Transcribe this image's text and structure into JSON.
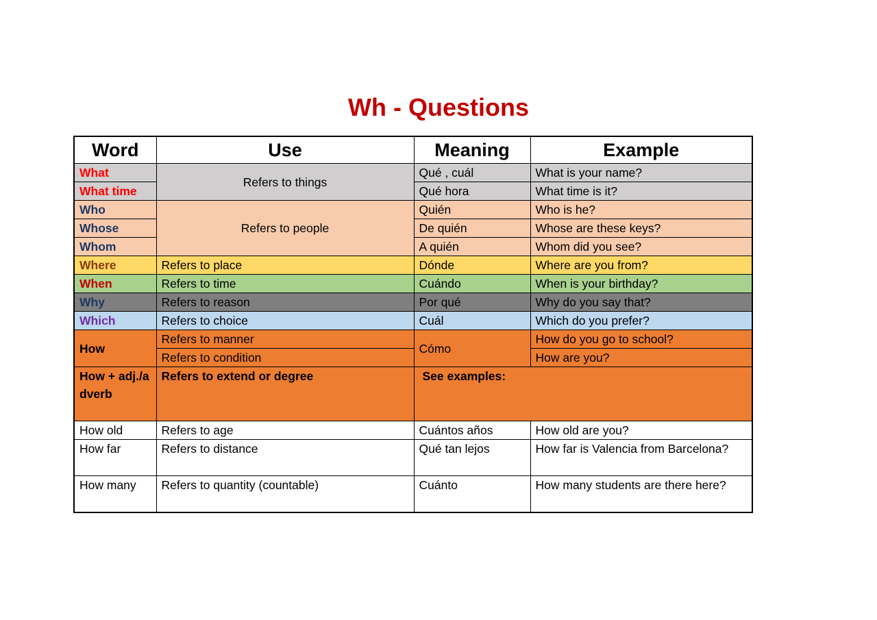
{
  "title": "Wh - Questions",
  "headers": [
    "Word",
    "Use",
    "Meaning",
    "Example"
  ],
  "colors": {
    "gray": "#d0cece",
    "peach": "#f8cbad",
    "yellow": "#ffd966",
    "green": "#a9d18e",
    "darkgray": "#7f7f7f",
    "blue": "#bdd7ee",
    "orange": "#ed7d31"
  },
  "rows": {
    "what": {
      "word": "What",
      "meaning": "Qué , cuál",
      "example": "What is your name?"
    },
    "what_time": {
      "word": "What time",
      "meaning": "Qué hora",
      "example": "What time is it?"
    },
    "things_use": "Refers to things",
    "who": {
      "word": "Who",
      "meaning": "Quién",
      "example": "Who is he?"
    },
    "whose": {
      "word": "Whose",
      "meaning": "De quién",
      "example": "Whose are these keys?"
    },
    "whom": {
      "word": "Whom",
      "meaning": "A quién",
      "example": "Whom did you see?"
    },
    "people_use": "Refers to people",
    "where": {
      "word": "Where",
      "use": "Refers to place",
      "meaning": "Dónde",
      "example": "Where are you from?"
    },
    "when": {
      "word": "When",
      "use": "Refers to time",
      "meaning": "Cuándo",
      "example": "When is your birthday?"
    },
    "why": {
      "word": "Why",
      "use": "Refers to reason",
      "meaning": "Por qué",
      "example": "Why do you say that?"
    },
    "which": {
      "word": "Which",
      "use": "Refers to choice",
      "meaning": "Cuál",
      "example": "Which do you prefer?"
    },
    "how": {
      "word": "How",
      "use1": "Refers to manner",
      "use2": "Refers to condition",
      "meaning": "Cómo",
      "example1": "How do you go to school?",
      "example2": "How are you?"
    },
    "how_adj": {
      "word": "How + adj./adverb",
      "use": "Refers to extend or degree",
      "meaning": "See examples:"
    },
    "how_old": {
      "word": "How old",
      "use": "Refers to age",
      "meaning": "Cuántos años",
      "example": "How old are you?"
    },
    "how_far": {
      "word": "How far",
      "use": "Refers to distance",
      "meaning": "Qué tan lejos",
      "example": "How far is Valencia from Barcelona?"
    },
    "how_many": {
      "word": "How many",
      "use": "Refers to quantity (countable)",
      "meaning": "Cuánto",
      "example": "How many students are there here?"
    }
  }
}
